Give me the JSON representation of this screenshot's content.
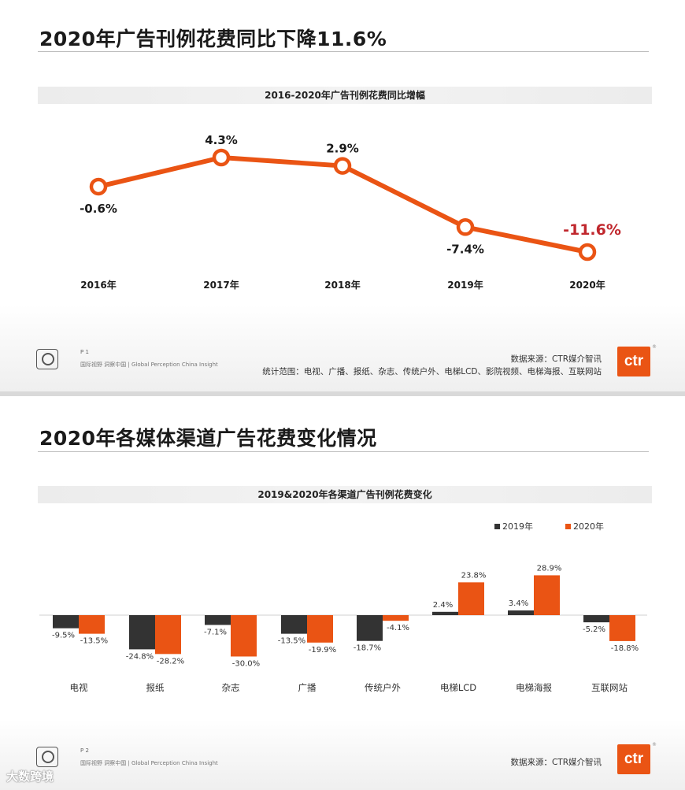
{
  "slide1": {
    "title": "2020年广告刊例花费同比下降11.6%",
    "chart_title": "2016-2020年广告刊例花费同比增幅",
    "page_no": "P 1",
    "slogan": "国际视野 洞察中国 | Global Perception China Insight",
    "source": "数据来源：CTR媒介智讯",
    "scope": "统计范围：电视、广播、报纸、杂志、传统户外、电梯LCD、影院视频、电梯海报、互联网站"
  },
  "slide2": {
    "title": "2020年各媒体渠道广告花费变化情况",
    "chart_title": "2019&2020年各渠道广告刊例花费变化",
    "page_no": "P 2",
    "slogan": "国际视野 洞察中国 | Global Perception China Insight",
    "source": "数据来源：CTR媒介智讯"
  },
  "logo_text": "ctr",
  "logo_reg": "®",
  "watermark": "大数跨境",
  "colors": {
    "orange": "#ea5414",
    "dark": "#333333",
    "highlight": "#c0272d"
  },
  "chart_data": [
    {
      "type": "line",
      "title": "2016-2020年广告刊例花费同比增幅",
      "categories": [
        "2016年",
        "2017年",
        "2018年",
        "2019年",
        "2020年"
      ],
      "values": [
        -0.6,
        4.3,
        2.9,
        -7.4,
        -11.6
      ],
      "labels": [
        "-0.6%",
        "4.3%",
        "2.9%",
        "-7.4%",
        "-11.6%"
      ],
      "highlight_last": true,
      "color": "#ea5414"
    },
    {
      "type": "bar",
      "title": "2019&2020年各渠道广告刊例花费变化",
      "categories": [
        "电视",
        "报纸",
        "杂志",
        "广播",
        "传统户外",
        "电梯LCD",
        "电梯海报",
        "互联网站"
      ],
      "series": [
        {
          "name": "2019年",
          "color": "#333333",
          "values": [
            -9.5,
            -24.8,
            -7.1,
            -13.5,
            -18.7,
            2.4,
            3.4,
            -5.2
          ],
          "labels": [
            "-9.5%",
            "-24.8%",
            "-7.1%",
            "-13.5%",
            "-18.7%",
            "2.4%",
            "3.4%",
            "-5.2%"
          ]
        },
        {
          "name": "2020年",
          "color": "#ea5414",
          "values": [
            -13.5,
            -28.2,
            -30.0,
            -19.9,
            -4.1,
            23.8,
            28.9,
            -18.8
          ],
          "labels": [
            "-13.5%",
            "-28.2%",
            "-30.0%",
            "-19.9%",
            "-4.1%",
            "23.8%",
            "28.9%",
            "-18.8%"
          ]
        }
      ],
      "legend": "top-right"
    }
  ]
}
